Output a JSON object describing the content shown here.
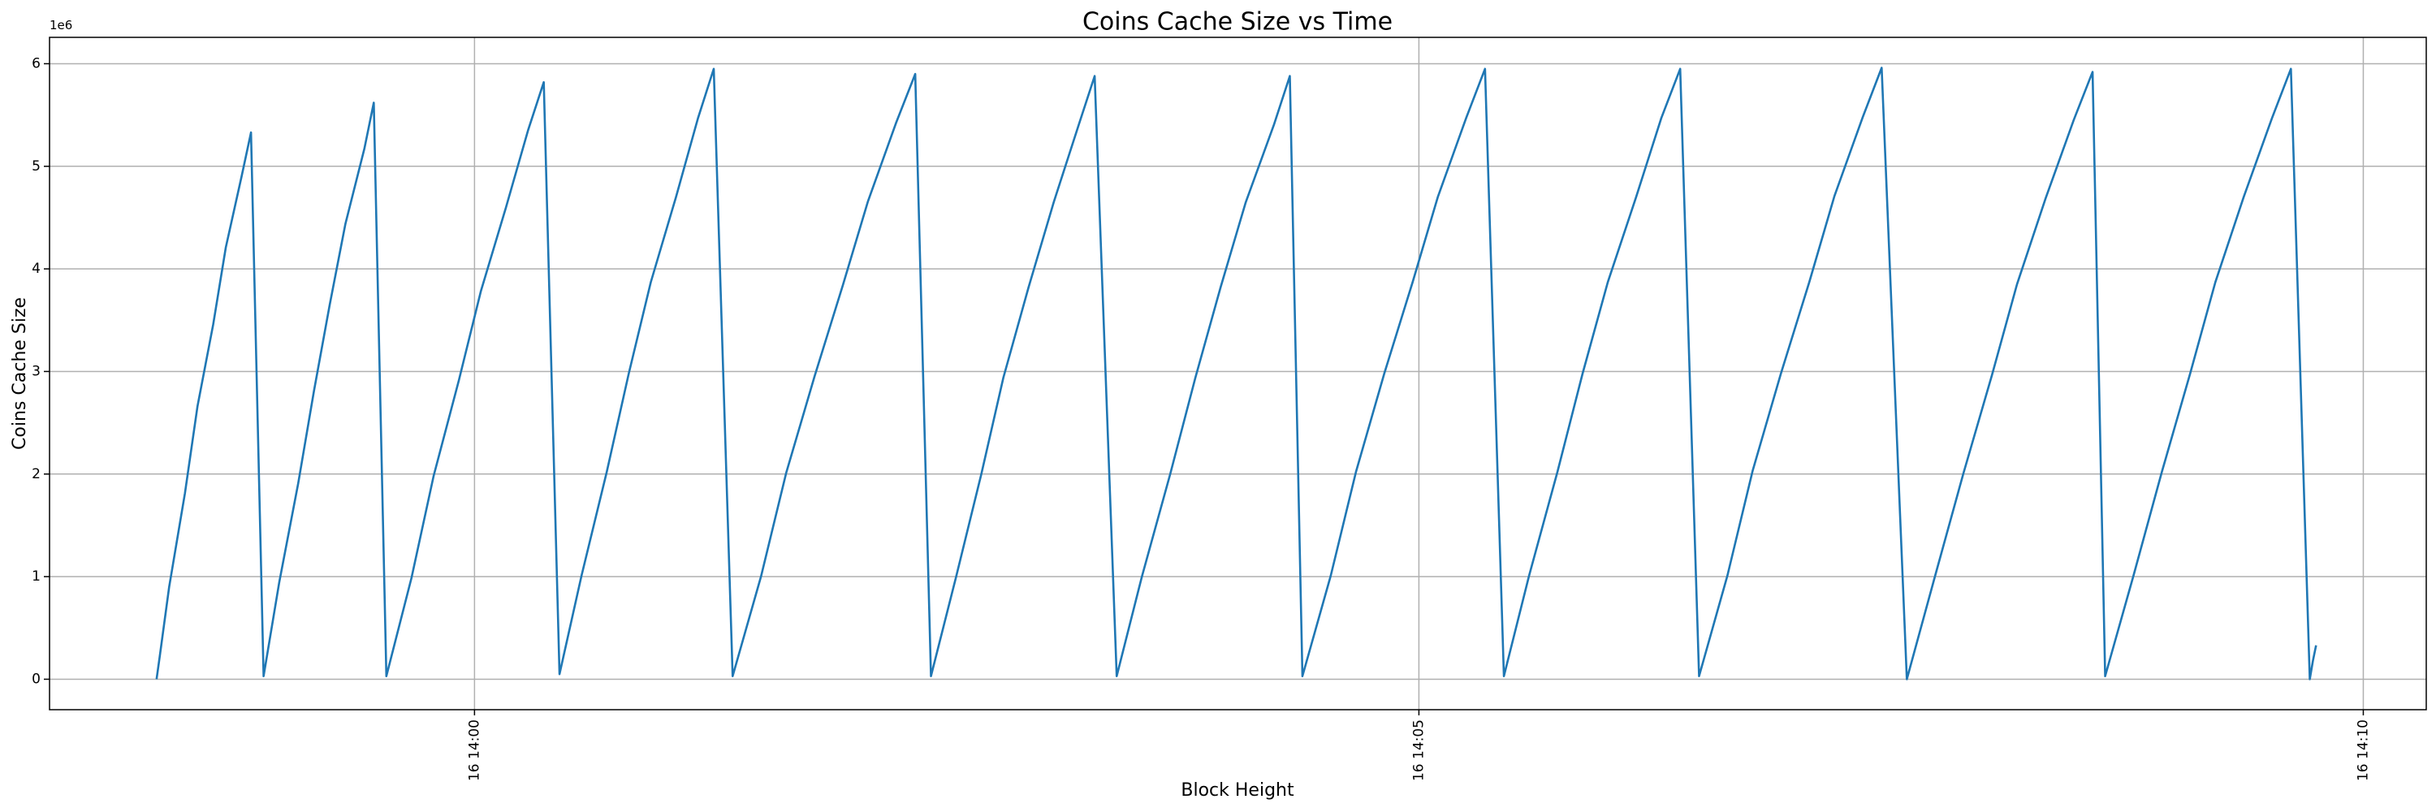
{
  "chart_data": {
    "type": "line",
    "title": "Coins Cache Size vs Time",
    "x_label": "Block Height",
    "y_label": "Coins Cache Size",
    "y_offset_label": "1e6",
    "color": "#1f77b4",
    "grid": true,
    "xlim": [
      50265,
      51020
    ],
    "xticks": [
      {
        "value": 50400,
        "label": "16 14:00"
      },
      {
        "value": 50700,
        "label": "16 14:05"
      },
      {
        "value": 51000,
        "label": "16 14:10"
      }
    ],
    "ylim": [
      -297000,
      6257000
    ],
    "yticks": [
      0,
      {
        "value": 1000000,
        "label": "1"
      },
      {
        "value": 2000000,
        "label": "2"
      },
      {
        "value": 3000000,
        "label": "3"
      },
      {
        "value": 4000000,
        "label": "4"
      },
      {
        "value": 5000000,
        "label": "5"
      },
      {
        "value": 6000000,
        "label": "6"
      }
    ],
    "x": [
      50299,
      50300,
      50303,
      50308,
      50312,
      50317,
      50321,
      50326,
      50329,
      50333,
      50338,
      50344,
      50349,
      50354,
      50359,
      50365,
      50368,
      50372,
      50380,
      50387,
      50395,
      50402,
      50410,
      50417,
      50422,
      50427,
      50434,
      50442,
      50449,
      50456,
      50464,
      50471,
      50476,
      50482,
      50491,
      50499,
      50508,
      50517,
      50525,
      50534,
      50540,
      50545,
      50553,
      50561,
      50568,
      50576,
      50584,
      50592,
      50597,
      50604,
      50612,
      50621,
      50629,
      50637,
      50645,
      50654,
      50659,
      50663,
      50672,
      50680,
      50689,
      50698,
      50706,
      50715,
      50721,
      50727,
      50735,
      50744,
      50752,
      50760,
      50769,
      50777,
      50783,
      50789,
      50798,
      50806,
      50815,
      50824,
      50832,
      50841,
      50847,
      50855,
      50864,
      50873,
      50882,
      50890,
      50899,
      50908,
      50914,
      50918,
      50927,
      50936,
      50945,
      50953,
      50962,
      50971,
      50977,
      50983,
      50984,
      50985
    ],
    "values": [
      0,
      220000,
      900000,
      1810000,
      2660000,
      3460000,
      4210000,
      4900000,
      5330000,
      30000,
      950000,
      1910000,
      2810000,
      3650000,
      4440000,
      5170000,
      5620000,
      30000,
      990000,
      1980000,
      2910000,
      3780000,
      4600000,
      5350000,
      5820000,
      50000,
      1010000,
      2020000,
      2980000,
      3870000,
      4700000,
      5470000,
      5950000,
      30000,
      1000000,
      2010000,
      2950000,
      3840000,
      4660000,
      5430000,
      5900000,
      30000,
      1000000,
      2000000,
      2940000,
      3820000,
      4650000,
      5410000,
      5880000,
      30000,
      1000000,
      2000000,
      2940000,
      3820000,
      4650000,
      5410000,
      5880000,
      30000,
      1010000,
      2020000,
      2980000,
      3870000,
      4700000,
      5470000,
      5950000,
      30000,
      1010000,
      2020000,
      2980000,
      3870000,
      4700000,
      5470000,
      5950000,
      30000,
      1010000,
      2030000,
      2980000,
      3870000,
      4710000,
      5480000,
      5960000,
      0,
      1010000,
      2010000,
      2960000,
      3850000,
      4680000,
      5450000,
      5920000,
      30000,
      1010000,
      2020000,
      2980000,
      3870000,
      4700000,
      5470000,
      5950000,
      0,
      180000,
      330000
    ]
  }
}
